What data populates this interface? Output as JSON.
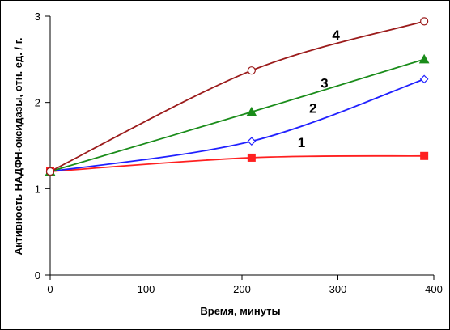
{
  "chart_data": {
    "type": "line",
    "title": "",
    "xlabel": "Время, минуты",
    "ylabel": "Активность НАДФН-оксидазы, отн. ед. / г.",
    "xlim": [
      0,
      400
    ],
    "ylim": [
      0,
      3
    ],
    "x_ticks": [
      0,
      100,
      200,
      300,
      400
    ],
    "y_ticks": [
      0,
      1,
      2,
      3
    ],
    "grid": false,
    "legend": "none",
    "series": [
      {
        "name": "1",
        "x": [
          0,
          210,
          390
        ],
        "values": [
          1.2,
          1.36,
          1.38
        ],
        "color": "#ff2020",
        "marker": "square"
      },
      {
        "name": "2",
        "x": [
          0,
          210,
          390
        ],
        "values": [
          1.2,
          1.55,
          2.27
        ],
        "color": "#2020ff",
        "marker": "diamond-open"
      },
      {
        "name": "3",
        "x": [
          0,
          210,
          390
        ],
        "values": [
          1.2,
          1.89,
          2.5
        ],
        "color": "#1a8c1a",
        "marker": "triangle"
      },
      {
        "name": "4",
        "x": [
          0,
          210,
          390
        ],
        "values": [
          1.2,
          2.37,
          2.94
        ],
        "color": "#9b1b1b",
        "marker": "circle-open"
      }
    ]
  }
}
